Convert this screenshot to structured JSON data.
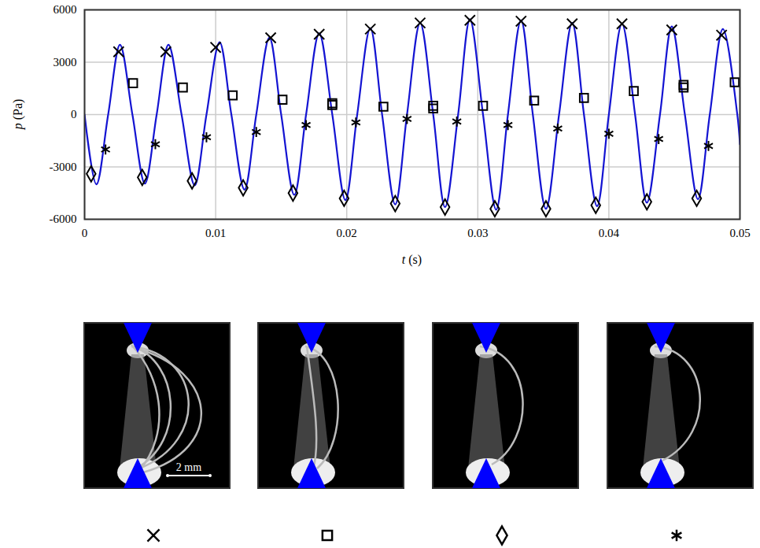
{
  "chart_data": {
    "type": "line",
    "x_label": "t (s)",
    "y_label": "p (Pa)",
    "xlim": [
      0,
      0.05
    ],
    "xticks": [
      0,
      0.01,
      0.02,
      0.03,
      0.04,
      0.05
    ],
    "ylim": [
      -6000,
      6000
    ],
    "yticks": [
      -6000,
      -3000,
      0,
      3000,
      6000
    ],
    "grid": true,
    "series": [
      {
        "type": "line",
        "color": "#1414d2",
        "line_style": "solid",
        "x": [
          0,
          0.0009,
          0.0018,
          0.0027,
          0.00365,
          0.0046,
          0.0055,
          0.0064,
          0.0074,
          0.0084,
          0.0093,
          0.0103,
          0.0112,
          0.0122,
          0.0131,
          0.0141,
          0.015,
          0.016,
          0.0169,
          0.0179,
          0.0189,
          0.0199,
          0.0208,
          0.0218,
          0.0227,
          0.0237,
          0.0246,
          0.0256,
          0.0266,
          0.0275,
          0.0285,
          0.0294,
          0.0304,
          0.0314,
          0.0323,
          0.0333,
          0.0342,
          0.0352,
          0.0362,
          0.0372,
          0.0381,
          0.0391,
          0.04,
          0.041,
          0.042,
          0.0429,
          0.0439,
          0.0448,
          0.0458,
          0.0468,
          0.0477,
          0.0487,
          0.0498,
          0.05
        ],
        "values": [
          0,
          -4000,
          0,
          4000,
          0,
          -3950,
          0,
          4000,
          0,
          -4050,
          0,
          4150,
          0,
          -4300,
          0,
          4400,
          0,
          -4600,
          0,
          4650,
          0,
          -4900,
          0,
          4950,
          0,
          -5150,
          0,
          5250,
          0,
          -5300,
          0,
          5450,
          0,
          -5450,
          0,
          5400,
          0,
          -5400,
          0,
          5250,
          0,
          -5250,
          0,
          5200,
          0,
          -5050,
          0,
          5050,
          0,
          -4850,
          0,
          4900,
          0,
          -1700
        ]
      },
      {
        "type": "scatter",
        "marker": "times",
        "color": "#000000",
        "x": [
          0.0026,
          0.0062,
          0.01,
          0.0142,
          0.0179,
          0.0218,
          0.0256,
          0.0294,
          0.0333,
          0.0372,
          0.041,
          0.0448,
          0.0486
        ],
        "values": [
          3600,
          3600,
          3850,
          4400,
          4600,
          4900,
          5250,
          5400,
          5350,
          5200,
          5200,
          4850,
          4550
        ]
      },
      {
        "type": "scatter",
        "marker": "square",
        "color": "#000000",
        "x": [
          0.0037,
          0.0075,
          0.0113,
          0.0151,
          0.0189,
          0.0189,
          0.0228,
          0.0266,
          0.0266,
          0.0304,
          0.0343,
          0.0381,
          0.0419,
          0.0457,
          0.0457,
          0.0496
        ],
        "values": [
          1800,
          1550,
          1100,
          850,
          550,
          650,
          450,
          350,
          500,
          500,
          800,
          950,
          1350,
          1550,
          1700,
          1850
        ]
      },
      {
        "type": "scatter",
        "marker": "diamond",
        "color": "#000000",
        "x": [
          0.0005,
          0.0044,
          0.0082,
          0.0121,
          0.0159,
          0.0198,
          0.0237,
          0.0275,
          0.0313,
          0.0352,
          0.039,
          0.0429,
          0.0467
        ],
        "values": [
          -3400,
          -3600,
          -3800,
          -4200,
          -4500,
          -4800,
          -5100,
          -5300,
          -5400,
          -5400,
          -5200,
          -5000,
          -4800
        ]
      },
      {
        "type": "scatter",
        "marker": "asterisk",
        "color": "#000000",
        "x": [
          0.0016,
          0.0054,
          0.0093,
          0.0131,
          0.0169,
          0.0207,
          0.0246,
          0.0284,
          0.0323,
          0.0361,
          0.04,
          0.0438,
          0.0476
        ],
        "values": [
          -2000,
          -1700,
          -1300,
          -1000,
          -600,
          -450,
          -250,
          -400,
          -600,
          -800,
          -1100,
          -1400,
          -1800
        ]
      }
    ]
  },
  "images": {
    "scale_bar_label": "2 mm",
    "markers": [
      "times",
      "square",
      "diamond",
      "asterisk"
    ]
  }
}
